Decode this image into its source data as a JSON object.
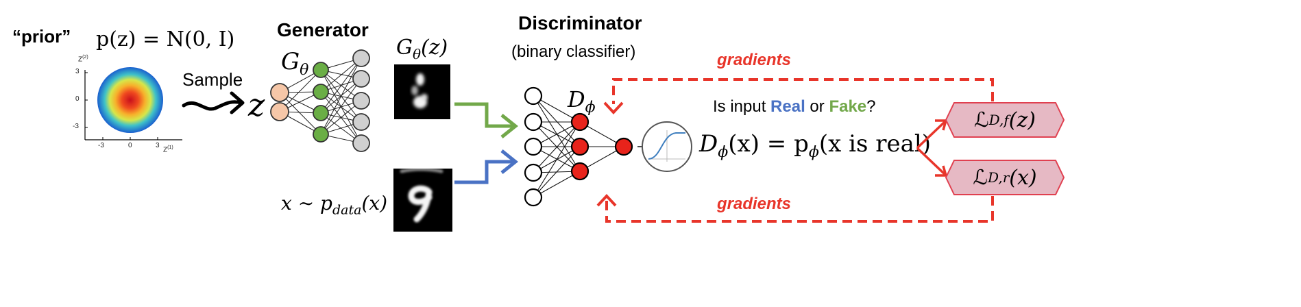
{
  "prior": {
    "label": "“prior”",
    "formula": "p(z) = N(0, I)",
    "axis": {
      "y_label": "Z",
      "y_sup": "(2)",
      "x_label": "Z",
      "x_sup": "(1)",
      "y_ticks": [
        "3",
        "0",
        "-3"
      ],
      "x_ticks": [
        "-3",
        "0",
        "3"
      ]
    }
  },
  "sample_label": "Sample",
  "z_symbol": "z",
  "generator": {
    "title": "Generator",
    "symbol": "G",
    "symbol_sub": "θ",
    "output_label": "G",
    "output_sub": "θ",
    "output_arg": "(z)"
  },
  "data_label": "x ∼ p",
  "data_sub": "data",
  "data_arg": "(x)",
  "discriminator": {
    "title": "Discriminator",
    "subtitle": "(binary classifier)",
    "symbol": "D",
    "symbol_sub": "ϕ"
  },
  "question": {
    "prefix": "Is input ",
    "real": "Real",
    "middle": " or ",
    "fake": "Fake",
    "suffix": "?"
  },
  "output_formula": {
    "lhs": "D",
    "lhs_sub": "ϕ",
    "lhs_arg": "(x) = p",
    "rhs_sub": "ϕ",
    "rhs_arg": "(x is real)"
  },
  "losses": {
    "fake": {
      "L": "ℒ",
      "sub": "D,f",
      "arg": "(z)"
    },
    "real": {
      "L": "ℒ",
      "sub": "D,r",
      "arg": "(x)"
    }
  },
  "gradients_top": "gradients",
  "gradients_bottom": "gradients",
  "colors": {
    "gradient_red": "#e8352a",
    "fake_green": "#72a84a",
    "real_blue": "#4a72c4",
    "latent_node": "#f6c7a8",
    "gen_hidden": "#6aae45",
    "gen_output": "#d0d0d0",
    "disc_hidden": "#e8231b",
    "loss_fill": "#e6b9c4",
    "loss_stroke": "#e04050"
  }
}
